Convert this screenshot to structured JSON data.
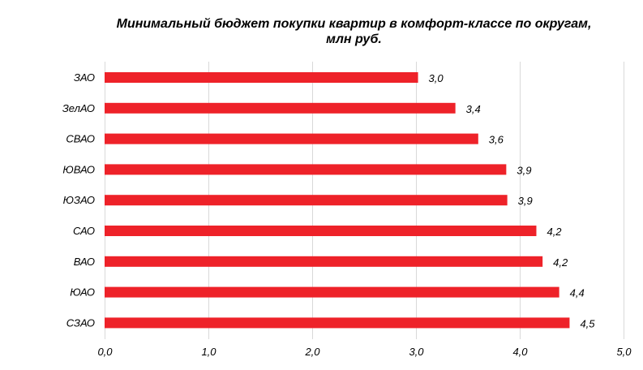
{
  "chart_data": {
    "type": "bar",
    "orientation": "horizontal",
    "title_lines": [
      "Минимальный бюджет покупки квартир в комфорт-классе по округам,",
      "млн руб."
    ],
    "categories": [
      "ЗАО",
      "ЗелАО",
      "СВАО",
      "ЮВАО",
      "ЮЗАО",
      "САО",
      "ВАО",
      "ЮАО",
      "СЗАО"
    ],
    "values": [
      3.02,
      3.38,
      3.6,
      3.87,
      3.88,
      4.16,
      4.22,
      4.38,
      4.48
    ],
    "value_labels": [
      "3,0",
      "3,4",
      "3,6",
      "3,9",
      "3,9",
      "4,2",
      "4,2",
      "4,4",
      "4,5"
    ],
    "xlim": [
      0,
      5
    ],
    "x_ticks": [
      "0,0",
      "1,0",
      "2,0",
      "3,0",
      "4,0",
      "5,0"
    ],
    "grid": "vertical",
    "bar_color": "#ee2229",
    "grid_color": "#d9d9d9"
  }
}
